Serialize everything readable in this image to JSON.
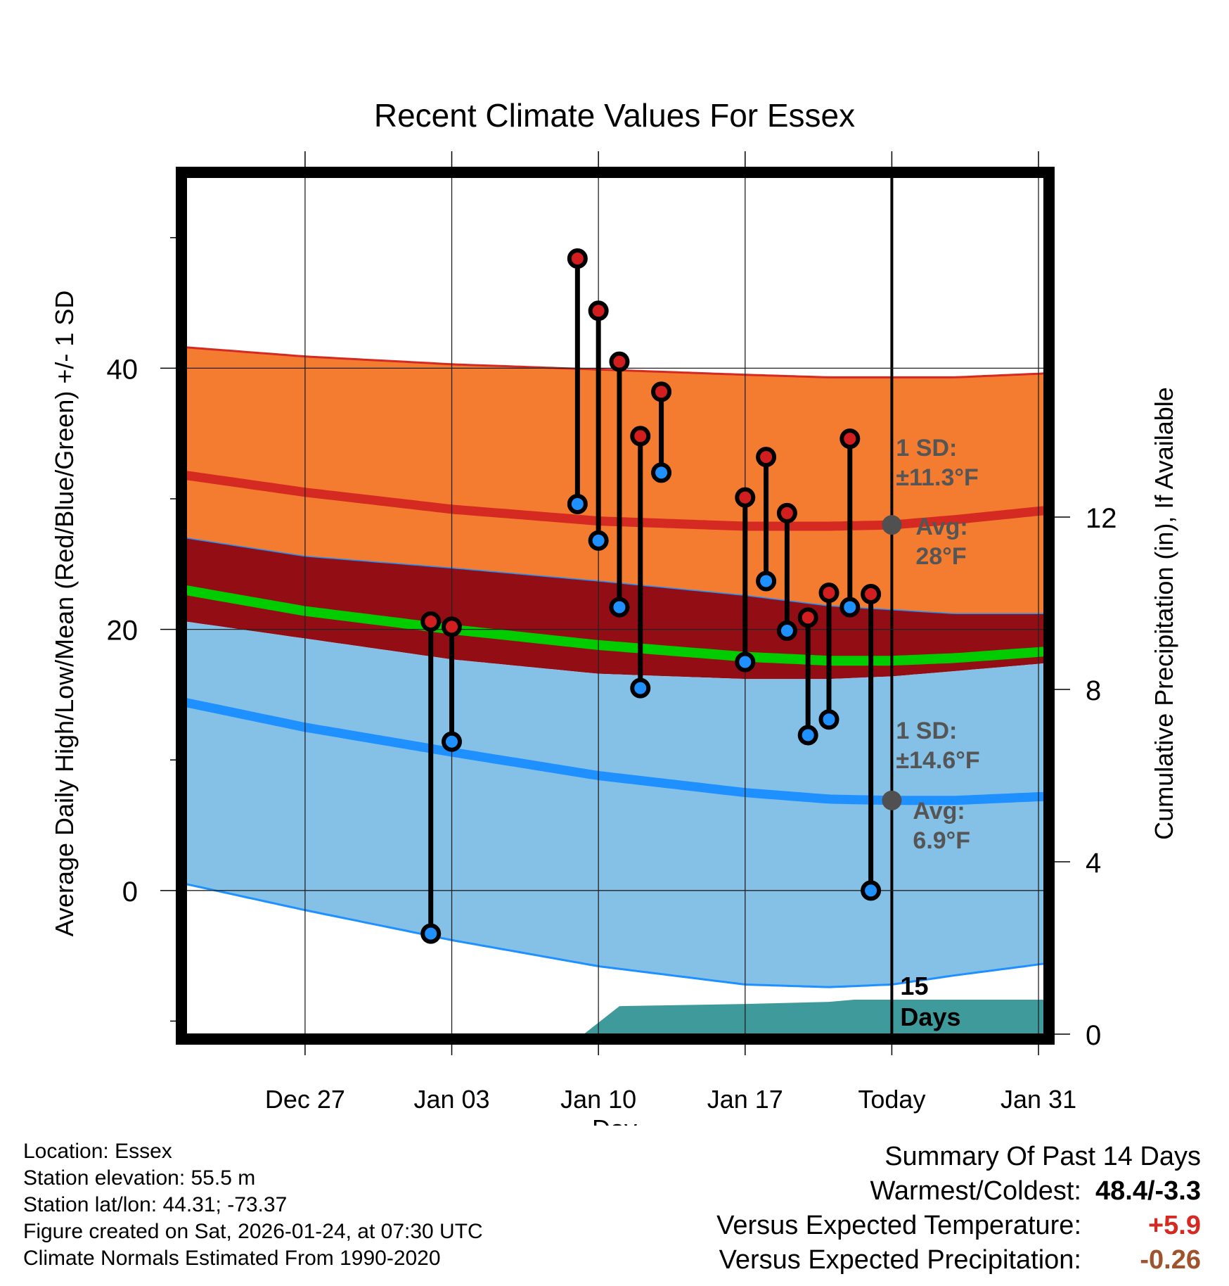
{
  "chart_data": {
    "type": "line",
    "title": "Recent Climate Values For Essex",
    "xlabel": "Day",
    "ylabel_left": "Average Daily High/Low/Mean (Red/Blue/Green) +/- 1 SD",
    "ylabel_right": "Cumulative Precipitation (in), If Available",
    "x_range_days": [
      -33.7,
      7.3
    ],
    "xticks": [
      {
        "day": -28,
        "label": "Dec 27"
      },
      {
        "day": -21,
        "label": "Jan 03"
      },
      {
        "day": -14,
        "label": "Jan 10"
      },
      {
        "day": -7,
        "label": "Jan 17"
      },
      {
        "day": 0,
        "label": "Today"
      },
      {
        "day": 7,
        "label": "Jan 31"
      }
    ],
    "y_left": {
      "range": [
        -11,
        55
      ],
      "ticks": [
        0,
        20,
        40
      ],
      "minor_ticks": [
        -10,
        10,
        30,
        50
      ]
    },
    "y_right": {
      "range": [
        0,
        20
      ],
      "ticks": [
        0,
        4,
        8,
        12
      ]
    },
    "normals": {
      "days": [
        -33.7,
        -28,
        -21,
        -14,
        -7,
        -3,
        0,
        3,
        7.3
      ],
      "high_upper": [
        41.6,
        40.9,
        40.3,
        39.9,
        39.5,
        39.3,
        39.3,
        39.3,
        39.6
      ],
      "high_mean": [
        31.8,
        30.5,
        29.2,
        28.3,
        27.9,
        27.9,
        28.0,
        28.4,
        29.1
      ],
      "high_lower": [
        27.0,
        25.6,
        24.7,
        23.7,
        22.6,
        21.8,
        21.5,
        21.2,
        21.2
      ],
      "mean_line": [
        23.0,
        21.4,
        20.0,
        18.8,
        17.9,
        17.6,
        17.6,
        17.8,
        18.3
      ],
      "low_upper": [
        20.6,
        19.3,
        17.7,
        16.6,
        16.2,
        16.2,
        16.4,
        16.8,
        17.4
      ],
      "low_mean": [
        14.4,
        12.5,
        10.6,
        8.8,
        7.5,
        7.0,
        6.9,
        6.9,
        7.2
      ],
      "low_lower": [
        0.5,
        -1.5,
        -3.8,
        -5.8,
        -7.2,
        -7.4,
        -7.2,
        -6.5,
        -5.6
      ]
    },
    "precip": {
      "days": [
        -14.7,
        -13,
        -7,
        -3,
        -1.8,
        0,
        3,
        7.3
      ],
      "values": [
        0,
        0.65,
        0.7,
        0.75,
        0.8,
        0.8,
        0.8,
        0.8
      ]
    },
    "observations": [
      {
        "day": -22,
        "high": 20.6,
        "low": -3.3
      },
      {
        "day": -21,
        "high": 20.2,
        "low": 11.4
      },
      {
        "day": -15,
        "high": 48.4,
        "low": 29.6
      },
      {
        "day": -14,
        "high": 44.4,
        "low": 26.8
      },
      {
        "day": -13,
        "high": 40.5,
        "low": 21.7
      },
      {
        "day": -12,
        "high": 34.8,
        "low": 15.5
      },
      {
        "day": -11,
        "high": 38.2,
        "low": 32.0
      },
      {
        "day": -7,
        "high": 30.1,
        "low": 17.5
      },
      {
        "day": -6,
        "high": 33.2,
        "low": 23.7
      },
      {
        "day": -5,
        "high": 28.9,
        "low": 19.9
      },
      {
        "day": -4,
        "high": 20.9,
        "low": 11.9
      },
      {
        "day": -3,
        "high": 22.8,
        "low": 13.1
      },
      {
        "day": -2,
        "high": 34.6,
        "low": 21.7
      },
      {
        "day": -1,
        "high": 22.7,
        "low": 0.0
      }
    ],
    "annotations": {
      "high_sd_l1": "1 SD:",
      "high_sd_l2": "±11.3°F",
      "high_avg_l1": "Avg:",
      "high_avg_l2": "28°F",
      "low_sd_l1": "1 SD:",
      "low_sd_l2": "±14.6°F",
      "low_avg_l1": "Avg:",
      "low_avg_l2": "6.9°F",
      "days_l1": "15",
      "days_l2": "Days"
    },
    "today_markers": {
      "high_avg": 28.0,
      "low_avg": 6.9
    }
  },
  "colors": {
    "high_band": "#f47c30",
    "high_line": "#d42a22",
    "mid_band": "#920d14",
    "mean_line": "#00cc00",
    "low_band": "#85c1e6",
    "low_line": "#1e90ff",
    "low_edge": "#1e90ff",
    "precip": "#3f9a9c",
    "marker_high": "#d21e1e",
    "marker_low": "#1e90ff",
    "annotation": "#555555",
    "positive": "#d42a22",
    "precip_text": "#a0522d"
  },
  "info": {
    "location": "Location: Essex",
    "elevation": "Station elevation: 55.5 m",
    "latlon": "Station lat/lon: 44.31; -73.37",
    "created": "Figure created on Sat, 2026-01-24, at 07:30 UTC",
    "normals": "Climate Normals Estimated From 1990-2020"
  },
  "summary": {
    "title": "Summary Of Past 14 Days",
    "warmest_label": "Warmest/Coldest:",
    "warmest_value": "48.4/-3.3",
    "temp_label": "Versus Expected Temperature:",
    "temp_value": "+5.9",
    "precip_label": "Versus Expected Precipitation:",
    "precip_value": "-0.26"
  }
}
